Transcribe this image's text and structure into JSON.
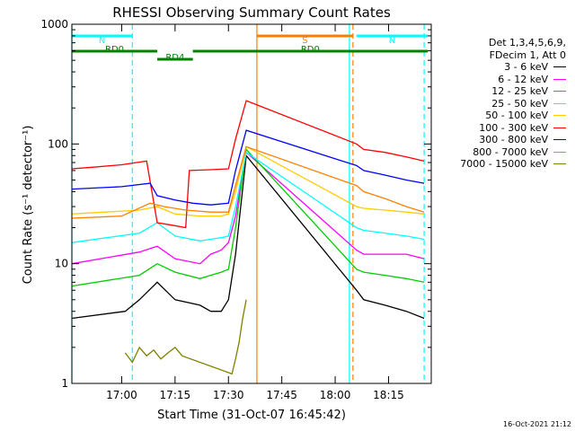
{
  "chart_data": {
    "type": "line",
    "title": "RHESSI Observing Summary Count Rates",
    "xlabel": "Start Time (31-Oct-07 16:45:42)",
    "ylabel": "Count Rate (s⁻¹ detector⁻¹)",
    "y_scale": "log",
    "ylim": [
      1,
      1000
    ],
    "xlim": [
      "16:46",
      "18:27"
    ],
    "x_ticks": [
      "17:00",
      "17:15",
      "17:30",
      "17:45",
      "18:00",
      "18:15"
    ],
    "y_ticks": [
      "1",
      "10",
      "100",
      "1000"
    ],
    "legend_title": [
      "Det 1,3,4,5,6,9,",
      "FDecim 1, Att 0"
    ],
    "series": [
      {
        "name": "3 - 6 keV",
        "color": "#000000",
        "x": [
          "16:46",
          "17:01",
          "17:05",
          "17:10",
          "17:15",
          "17:22",
          "17:25",
          "17:28",
          "17:30",
          "17:32",
          "17:35",
          "18:06",
          "18:08",
          "18:14",
          "18:20",
          "18:25"
        ],
        "y": [
          3.5,
          4,
          5,
          7,
          5,
          4.5,
          4,
          4,
          5,
          12,
          80,
          6,
          5,
          4.5,
          4,
          3.5
        ]
      },
      {
        "name": "6 - 12 keV",
        "color": "#ff00ff",
        "x": [
          "16:46",
          "17:05",
          "17:10",
          "17:15",
          "17:22",
          "17:25",
          "17:28",
          "17:30",
          "17:32",
          "17:35",
          "18:06",
          "18:08",
          "18:14",
          "18:20",
          "18:25"
        ],
        "y": [
          10,
          12.5,
          14,
          11,
          10,
          12,
          13,
          15,
          25,
          85,
          13,
          12,
          12,
          12,
          11
        ]
      },
      {
        "name": "12 - 25 keV",
        "color": "#00cc00",
        "x": [
          "16:46",
          "17:05",
          "17:10",
          "17:15",
          "17:22",
          "17:25",
          "17:28",
          "17:30",
          "17:32",
          "17:35",
          "18:06",
          "18:08",
          "18:14",
          "18:20",
          "18:25"
        ],
        "y": [
          6.5,
          8,
          10,
          8.5,
          7.5,
          8,
          8.5,
          9,
          20,
          90,
          9,
          8.5,
          8,
          7.5,
          7
        ]
      },
      {
        "name": "25 - 50 keV",
        "color": "#00ffff",
        "x": [
          "16:46",
          "17:05",
          "17:10",
          "17:15",
          "17:22",
          "17:25",
          "17:28",
          "17:30",
          "17:32",
          "17:35",
          "18:06",
          "18:08",
          "18:14",
          "18:20",
          "18:25"
        ],
        "y": [
          15,
          18,
          22,
          17,
          15.5,
          16,
          16.5,
          17,
          30,
          85,
          20,
          19,
          18,
          17,
          16
        ]
      },
      {
        "name": "50 - 100 keV",
        "color": "#ffcc00",
        "x": [
          "16:46",
          "17:05",
          "17:10",
          "17:15",
          "17:22",
          "17:25",
          "17:28",
          "17:30",
          "17:32",
          "17:35",
          "18:06",
          "18:08",
          "18:14",
          "18:20",
          "18:25"
        ],
        "y": [
          26,
          28,
          30,
          26,
          25,
          25,
          25,
          26,
          40,
          95,
          30,
          29,
          28,
          27,
          26
        ]
      },
      {
        "name": "100 - 300 keV",
        "color": "#ff0000",
        "x": [
          "16:46",
          "16:52",
          "17:00",
          "17:07",
          "17:10",
          "17:14",
          "17:18",
          "17:19",
          "17:25",
          "17:30",
          "17:32",
          "17:34",
          "17:35",
          "18:06",
          "18:08",
          "18:14",
          "18:20",
          "18:25"
        ],
        "y": [
          62,
          64,
          67,
          72,
          22,
          21,
          20,
          60,
          61,
          62,
          110,
          180,
          230,
          100,
          90,
          85,
          78,
          72
        ]
      },
      {
        "name": "300 - 800 keV",
        "color": "#0000ff",
        "x": [
          "16:46",
          "17:00",
          "17:08",
          "17:10",
          "17:15",
          "17:20",
          "17:25",
          "17:30",
          "17:32",
          "17:35",
          "18:06",
          "18:08",
          "18:14",
          "18:20",
          "18:25"
        ],
        "y": [
          42,
          44,
          47,
          37,
          34,
          32,
          31,
          32,
          60,
          130,
          66,
          60,
          55,
          50,
          47
        ]
      },
      {
        "name": "800 - 7000 keV",
        "color": "#ff8000",
        "x": [
          "16:46",
          "17:00",
          "17:08",
          "17:12",
          "17:18",
          "17:25",
          "17:30",
          "17:32",
          "17:35",
          "18:06",
          "18:08",
          "18:14",
          "18:20",
          "18:25"
        ],
        "y": [
          24,
          25,
          32,
          30,
          28,
          27,
          27,
          45,
          95,
          45,
          40,
          35,
          30,
          27
        ]
      },
      {
        "name": "7000 - 15000 keV",
        "color": "#808000",
        "x": [
          "17:01",
          "17:03",
          "17:05",
          "17:07",
          "17:09",
          "17:11",
          "17:13",
          "17:15",
          "17:17",
          "17:31",
          "17:32",
          "17:33",
          "17:34",
          "17:35"
        ],
        "y": [
          1.8,
          1.5,
          2,
          1.7,
          1.9,
          1.6,
          1.8,
          2,
          1.7,
          1.2,
          1.6,
          2.2,
          3.5,
          5
        ]
      }
    ],
    "annotations": [
      {
        "label": "N",
        "color": "#00ffff",
        "level": "top",
        "x_start": "16:46",
        "x_end": "17:03"
      },
      {
        "label": "N",
        "color": "#00ffff",
        "level": "top",
        "x_start": "18:06",
        "x_end": "18:26"
      },
      {
        "label": "S",
        "color": "#ff8000",
        "level": "top",
        "x_start": "17:38",
        "x_end": "18:05"
      },
      {
        "label": "RD0",
        "color": "#008000",
        "level": "middle",
        "x_start": "16:46",
        "x_end": "17:10"
      },
      {
        "label": "RD0",
        "color": "#008000",
        "level": "middle",
        "x_start": "17:20",
        "x_end": "18:26"
      },
      {
        "label": "RD4",
        "color": "#008000",
        "level": "lower",
        "x_start": "17:10",
        "x_end": "17:20"
      }
    ],
    "vertical_lines": [
      {
        "x": "16:46",
        "color": "#00ffff",
        "style": "solid"
      },
      {
        "x": "17:03",
        "color": "#00ffff",
        "style": "dashed"
      },
      {
        "x": "17:38",
        "color": "#ff8000",
        "style": "solid"
      },
      {
        "x": "18:04",
        "color": "#00ffff",
        "style": "solid"
      },
      {
        "x": "18:05",
        "color": "#ff8000",
        "style": "dashed"
      },
      {
        "x": "18:25",
        "color": "#00ffff",
        "style": "dashed"
      }
    ],
    "grid": false,
    "legend_position": "right"
  },
  "footer": {
    "timestamp": "16-Oct-2021 21:12"
  }
}
